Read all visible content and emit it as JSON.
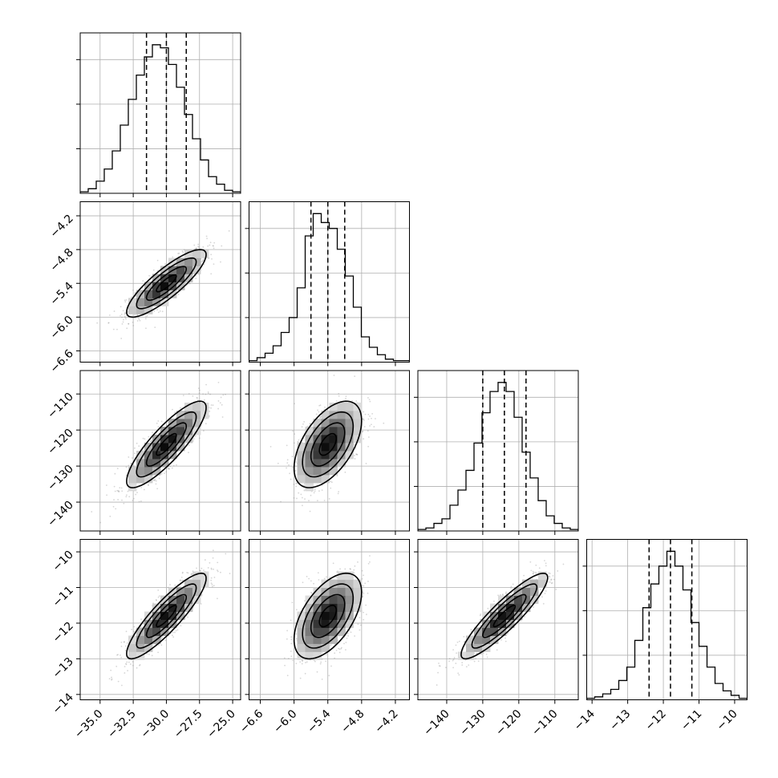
{
  "chart_data": {
    "type": "corner",
    "grid": true,
    "parameters": [
      {
        "center": -30.0,
        "sigma": 1.5,
        "lim": [
          -36.5,
          -24.4
        ],
        "ticks": [
          -35.0,
          -32.5,
          -30.0,
          -27.5,
          -25.0
        ],
        "tick_labels": [
          "−35.0",
          "−32.5",
          "−30.0",
          "−27.5",
          "−25.0"
        ],
        "quantiles": [
          -31.5,
          -30.0,
          -28.5
        ]
      },
      {
        "center": -5.4,
        "sigma": 0.3,
        "lim": [
          -6.8,
          -3.95
        ],
        "ticks": [
          -6.6,
          -6.0,
          -5.4,
          -4.8,
          -4.2
        ],
        "tick_labels": [
          "−6.6",
          "−6.0",
          "−5.4",
          "−4.8",
          "−4.2"
        ],
        "quantiles": [
          -5.7,
          -5.4,
          -5.1
        ]
      },
      {
        "center": -124.0,
        "sigma": 6.0,
        "lim": [
          -148.0,
          -103.5
        ],
        "ticks": [
          -140,
          -130,
          -120,
          -110
        ],
        "tick_labels": [
          "−140",
          "−130",
          "−120",
          "−110"
        ],
        "quantiles": [
          -130.0,
          -124.0,
          -118.0
        ]
      },
      {
        "center": -11.8,
        "sigma": 0.6,
        "lim": [
          -14.15,
          -9.65
        ],
        "ticks": [
          -14,
          -13,
          -12,
          -11,
          -10
        ],
        "tick_labels": [
          "−14",
          "−13",
          "−12",
          "−11",
          "−10"
        ],
        "quantiles": [
          -12.4,
          -11.8,
          -11.2
        ]
      }
    ],
    "correlations": [
      [
        1.0,
        0.85,
        0.85,
        0.88
      ],
      [
        0.85,
        1.0,
        0.55,
        0.55
      ],
      [
        0.85,
        0.55,
        1.0,
        0.9
      ],
      [
        0.88,
        0.55,
        0.9,
        1.0
      ]
    ],
    "histograms": [
      {
        "bins": 20,
        "counts": [
          1,
          3,
          8,
          16,
          28,
          45,
          62,
          78,
          90,
          98,
          96,
          85,
          70,
          52,
          36,
          22,
          11,
          6,
          2,
          1
        ]
      },
      {
        "bins": 20,
        "counts": [
          1,
          3,
          6,
          11,
          20,
          30,
          50,
          85,
          100,
          94,
          90,
          76,
          58,
          37,
          17,
          10,
          5,
          2,
          1,
          1
        ]
      },
      {
        "bins": 20,
        "counts": [
          1,
          2,
          5,
          8,
          17,
          27,
          40,
          58,
          78,
          92,
          98,
          92,
          75,
          52,
          35,
          20,
          10,
          5,
          2,
          1
        ]
      },
      {
        "bins": 20,
        "counts": [
          1,
          2,
          4,
          7,
          13,
          22,
          40,
          62,
          78,
          90,
          100,
          90,
          74,
          52,
          36,
          22,
          11,
          6,
          3,
          1
        ]
      }
    ],
    "contour_levels_sigma": [
      0.5,
      1.0,
      1.5,
      2.0
    ]
  }
}
